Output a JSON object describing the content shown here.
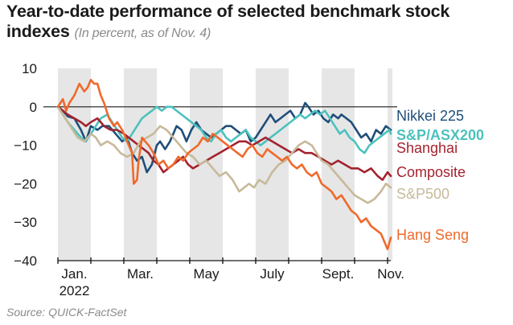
{
  "chart_data": {
    "type": "line",
    "title": "Year-to-date performance of selected benchmark stock indexes",
    "subtitle": "(In percent, as of Nov. 4)",
    "source": "Source: QUICK-FactSet",
    "ylim": [
      -40,
      10
    ],
    "yticks": [
      10,
      0,
      -10,
      -20,
      -30,
      -40
    ],
    "xlim": [
      0,
      10.15
    ],
    "month_labels": [
      {
        "label": "Jan.",
        "sub": "2022",
        "x": 0.5
      },
      {
        "label": "Mar.",
        "x": 2.5
      },
      {
        "label": "May",
        "x": 4.5
      },
      {
        "label": "July",
        "x": 6.5
      },
      {
        "label": "Sept.",
        "x": 8.5
      },
      {
        "label": "Nov.",
        "x": 10.1
      }
    ],
    "shaded_months": [
      [
        0,
        1
      ],
      [
        2,
        3
      ],
      [
        4,
        5
      ],
      [
        6,
        7
      ],
      [
        8,
        9
      ],
      [
        10,
        10.15
      ]
    ],
    "series": [
      {
        "name": "Nikkei 225",
        "color": "#1f4e79",
        "x": [
          0.0,
          0.15,
          0.3,
          0.5,
          0.7,
          0.85,
          1.0,
          1.2,
          1.35,
          1.55,
          1.75,
          1.95,
          2.1,
          2.25,
          2.4,
          2.55,
          2.7,
          2.85,
          3.0,
          3.1,
          3.25,
          3.4,
          3.5,
          3.6,
          3.75,
          3.9,
          4.05,
          4.2,
          4.35,
          4.5,
          4.65,
          4.8,
          4.95,
          5.1,
          5.25,
          5.4,
          5.55,
          5.7,
          5.85,
          6.0,
          6.15,
          6.3,
          6.45,
          6.6,
          6.75,
          6.9,
          7.05,
          7.2,
          7.35,
          7.5,
          7.6,
          7.75,
          7.9,
          8.05,
          8.2,
          8.35,
          8.5,
          8.6,
          8.75,
          8.9,
          9.05,
          9.2,
          9.35,
          9.5,
          9.65,
          9.8,
          9.95,
          10.1
        ],
        "y": [
          0,
          -1,
          -2.5,
          -3,
          -6,
          -9,
          -5,
          -6,
          -5,
          -5,
          -7,
          -9,
          -8,
          -12,
          -14,
          -13,
          -17,
          -15,
          -10,
          -9,
          -11,
          -9,
          -7,
          -5,
          -6,
          -9,
          -6,
          -4,
          -6,
          -7,
          -8,
          -7,
          -6,
          -5,
          -5,
          -6,
          -7,
          -6,
          -9,
          -8,
          -6,
          -4,
          -2,
          -4,
          -3,
          -2,
          -1,
          -3,
          -2,
          1,
          0,
          -2,
          -1,
          -3,
          -4,
          -2,
          -3,
          -2,
          -3,
          -4,
          -6,
          -8,
          -7,
          -9,
          -6,
          -7,
          -5,
          -6
        ]
      },
      {
        "name": "S&P/ASX200",
        "color": "#4cc2bd",
        "x": [
          0.0,
          0.15,
          0.3,
          0.5,
          0.7,
          0.85,
          1.0,
          1.15,
          1.3,
          1.5,
          1.65,
          1.8,
          1.95,
          2.1,
          2.25,
          2.4,
          2.55,
          2.7,
          2.85,
          3.0,
          3.15,
          3.3,
          3.45,
          3.6,
          3.75,
          3.9,
          4.05,
          4.2,
          4.35,
          4.5,
          4.65,
          4.8,
          4.95,
          5.1,
          5.25,
          5.4,
          5.55,
          5.7,
          5.85,
          6.0,
          6.15,
          6.3,
          6.45,
          6.6,
          6.75,
          6.9,
          7.05,
          7.2,
          7.35,
          7.5,
          7.65,
          7.8,
          7.95,
          8.1,
          8.25,
          8.4,
          8.55,
          8.7,
          8.85,
          9.0,
          9.15,
          9.3,
          9.45,
          9.6,
          9.75,
          9.9,
          10.05,
          10.1
        ],
        "y": [
          0,
          -2,
          -4,
          -6,
          -8,
          -9,
          -7,
          -5,
          -3,
          -2,
          -4,
          -6,
          -8,
          -9,
          -7,
          -5,
          -3,
          -2,
          -1,
          0,
          -1,
          0,
          0,
          -1,
          -2,
          -3,
          -4,
          -5,
          -6,
          -8,
          -9,
          -7,
          -6,
          -8,
          -9,
          -8,
          -7,
          -6,
          -8,
          -9,
          -10,
          -9,
          -8,
          -7,
          -6,
          -5,
          -4,
          -3,
          -2,
          -3,
          -2,
          -1,
          -2,
          -1,
          -3,
          -5,
          -7,
          -6,
          -8,
          -9,
          -11,
          -12,
          -10,
          -9,
          -8,
          -7,
          -6,
          -7
        ]
      },
      {
        "name": "Shanghai Composite",
        "color": "#a3232f",
        "x": [
          0.0,
          0.15,
          0.3,
          0.5,
          0.7,
          0.85,
          1.0,
          1.2,
          1.4,
          1.6,
          1.8,
          2.0,
          2.15,
          2.3,
          2.45,
          2.6,
          2.75,
          2.9,
          3.05,
          3.2,
          3.35,
          3.5,
          3.65,
          3.8,
          3.95,
          4.1,
          4.3,
          4.5,
          4.7,
          4.9,
          5.1,
          5.3,
          5.5,
          5.7,
          5.9,
          6.1,
          6.3,
          6.5,
          6.7,
          6.9,
          7.1,
          7.3,
          7.5,
          7.7,
          7.9,
          8.1,
          8.3,
          8.5,
          8.7,
          8.9,
          9.1,
          9.3,
          9.5,
          9.7,
          9.85,
          10.0,
          10.1
        ],
        "y": [
          0,
          -1,
          -2,
          -3,
          -4,
          -5,
          -4,
          -3,
          -5,
          -6,
          -6,
          -7,
          -8,
          -9,
          -10,
          -11,
          -12,
          -14,
          -15,
          -17,
          -16,
          -15,
          -14,
          -13,
          -15,
          -16,
          -15,
          -14,
          -13,
          -12,
          -11,
          -10,
          -9,
          -9,
          -10,
          -9,
          -8,
          -9,
          -10,
          -11,
          -12,
          -11,
          -12,
          -12,
          -13,
          -14,
          -15,
          -14,
          -15,
          -16,
          -16,
          -17,
          -16,
          -18,
          -19,
          -17,
          -18
        ]
      },
      {
        "name": "S&P500",
        "color": "#c8b99a",
        "x": [
          0.0,
          0.15,
          0.3,
          0.45,
          0.6,
          0.8,
          1.0,
          1.15,
          1.3,
          1.5,
          1.7,
          1.9,
          2.1,
          2.3,
          2.5,
          2.7,
          2.9,
          3.1,
          3.3,
          3.5,
          3.7,
          3.9,
          4.1,
          4.3,
          4.5,
          4.7,
          4.9,
          5.1,
          5.3,
          5.5,
          5.65,
          5.8,
          5.95,
          6.1,
          6.3,
          6.5,
          6.7,
          6.9,
          7.1,
          7.3,
          7.5,
          7.7,
          7.85,
          8.0,
          8.2,
          8.4,
          8.6,
          8.8,
          9.0,
          9.2,
          9.4,
          9.6,
          9.8,
          9.95,
          10.1
        ],
        "y": [
          0,
          -2,
          -4,
          -6,
          -8,
          -9,
          -7,
          -8,
          -10,
          -9,
          -10,
          -12,
          -13,
          -12,
          -9,
          -8,
          -7,
          -5,
          -6,
          -8,
          -10,
          -12,
          -13,
          -15,
          -14,
          -16,
          -18,
          -17,
          -19,
          -22,
          -21,
          -20,
          -21,
          -19,
          -20,
          -17,
          -15,
          -14,
          -12,
          -10,
          -9,
          -10,
          -12,
          -14,
          -15,
          -17,
          -19,
          -21,
          -23,
          -24,
          -25,
          -24,
          -22,
          -20,
          -21
        ]
      },
      {
        "name": "Hang Seng",
        "color": "#ef6a2b",
        "x": [
          0.0,
          0.15,
          0.25,
          0.35,
          0.5,
          0.65,
          0.8,
          0.9,
          1.0,
          1.1,
          1.2,
          1.3,
          1.4,
          1.55,
          1.7,
          1.8,
          1.95,
          2.05,
          2.15,
          2.25,
          2.3,
          2.4,
          2.45,
          2.55,
          2.65,
          2.75,
          2.9,
          3.05,
          3.2,
          3.35,
          3.5,
          3.65,
          3.8,
          3.95,
          4.1,
          4.25,
          4.4,
          4.55,
          4.7,
          4.85,
          5.0,
          5.15,
          5.3,
          5.45,
          5.6,
          5.75,
          5.9,
          6.05,
          6.2,
          6.35,
          6.5,
          6.65,
          6.8,
          6.95,
          7.1,
          7.25,
          7.4,
          7.55,
          7.7,
          7.85,
          8.0,
          8.15,
          8.3,
          8.45,
          8.6,
          8.75,
          8.9,
          9.05,
          9.2,
          9.35,
          9.5,
          9.65,
          9.8,
          9.9,
          10.0,
          10.1
        ],
        "y": [
          0,
          2,
          -1,
          1,
          3,
          6,
          4,
          5,
          7,
          6,
          6,
          3,
          1,
          -3,
          -5,
          -4,
          -6,
          -8,
          -10,
          -12,
          -20,
          -19,
          -14,
          -8,
          -9,
          -10,
          -12,
          -15,
          -14,
          -16,
          -15,
          -13,
          -14,
          -12,
          -11,
          -10,
          -8,
          -9,
          -7,
          -8,
          -9,
          -10,
          -11,
          -12,
          -13,
          -11,
          -10,
          -12,
          -13,
          -11,
          -12,
          -13,
          -14,
          -13,
          -15,
          -16,
          -15,
          -17,
          -18,
          -17,
          -20,
          -21,
          -22,
          -24,
          -23,
          -25,
          -27,
          -28,
          -30,
          -29,
          -31,
          -32,
          -33,
          -35,
          -37,
          -34
        ]
      }
    ],
    "legend": [
      {
        "name": "Nikkei 225",
        "lines": [
          "Nikkei 225"
        ],
        "color": "#1f4e79",
        "bold": false
      },
      {
        "name": "S&P/ASX200",
        "lines": [
          "S&P/ASX200"
        ],
        "color": "#4cc2bd",
        "bold": true
      },
      {
        "name": "Shanghai Composite",
        "lines": [
          "Shanghai",
          "Composite"
        ],
        "color": "#a3232f",
        "bold": false
      },
      {
        "name": "S&P500",
        "lines": [
          "S&P500"
        ],
        "color": "#c8b99a",
        "bold": false
      },
      {
        "name": "Hang Seng",
        "lines": [
          "Hang Seng"
        ],
        "color": "#ef6a2b",
        "bold": false
      }
    ]
  }
}
